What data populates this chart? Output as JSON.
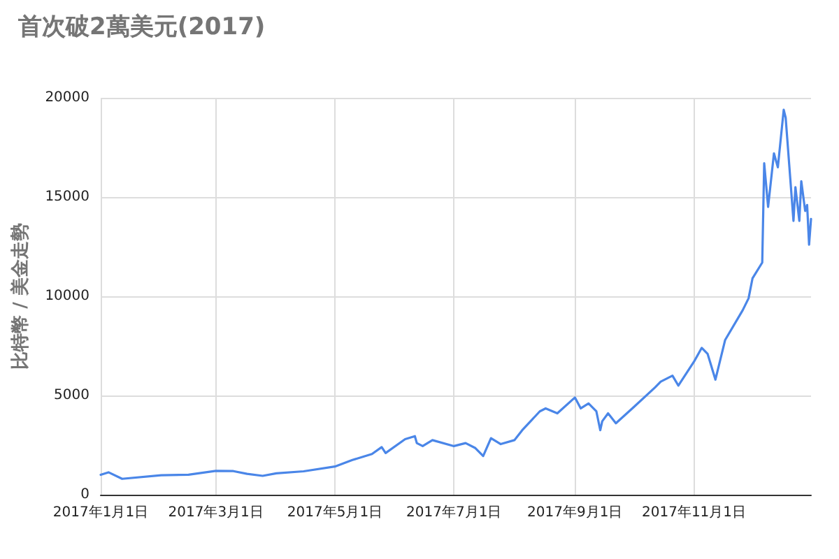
{
  "chart_data": {
    "type": "line",
    "title": "首次破2萬美元(2017)",
    "ylabel": "比特幣 / 美金走勢",
    "x": [
      "2017-01-01",
      "2017-01-05",
      "2017-01-12",
      "2017-02-01",
      "2017-02-15",
      "2017-03-01",
      "2017-03-10",
      "2017-03-17",
      "2017-03-25",
      "2017-04-01",
      "2017-04-15",
      "2017-05-01",
      "2017-05-10",
      "2017-05-20",
      "2017-05-25",
      "2017-05-27",
      "2017-06-06",
      "2017-06-11",
      "2017-06-12",
      "2017-06-15",
      "2017-06-20",
      "2017-07-01",
      "2017-07-07",
      "2017-07-12",
      "2017-07-16",
      "2017-07-20",
      "2017-07-25",
      "2017-08-01",
      "2017-08-05",
      "2017-08-14",
      "2017-08-17",
      "2017-08-23",
      "2017-09-01",
      "2017-09-04",
      "2017-09-08",
      "2017-09-12",
      "2017-09-14",
      "2017-09-15",
      "2017-09-18",
      "2017-09-22",
      "2017-10-01",
      "2017-10-12",
      "2017-10-15",
      "2017-10-21",
      "2017-10-24",
      "2017-11-01",
      "2017-11-05",
      "2017-11-08",
      "2017-11-12",
      "2017-11-17",
      "2017-11-26",
      "2017-11-29",
      "2017-12-01",
      "2017-12-06",
      "2017-12-07",
      "2017-12-09",
      "2017-12-12",
      "2017-12-14",
      "2017-12-17",
      "2017-12-18",
      "2017-12-22",
      "2017-12-23",
      "2017-12-25",
      "2017-12-26",
      "2017-12-28",
      "2017-12-29",
      "2017-12-30",
      "2017-12-31"
    ],
    "series": [
      {
        "color": "#4a86e8",
        "values": [
          1000,
          1130,
          800,
          980,
          1010,
          1200,
          1190,
          1050,
          950,
          1080,
          1180,
          1420,
          1750,
          2050,
          2400,
          2100,
          2800,
          2950,
          2600,
          2450,
          2750,
          2450,
          2600,
          2350,
          1950,
          2850,
          2550,
          2750,
          3250,
          4200,
          4350,
          4100,
          4900,
          4350,
          4600,
          4200,
          3250,
          3700,
          4100,
          3600,
          4400,
          5400,
          5700,
          6000,
          5500,
          6700,
          7400,
          7100,
          5800,
          7800,
          9300,
          9900,
          10900,
          11700,
          16700,
          14500,
          17200,
          16500,
          19400,
          19000,
          13800,
          15500,
          13800,
          15800,
          14300,
          14600,
          12600,
          13900
        ]
      }
    ],
    "xlim": [
      "2017-01-01",
      "2017-12-31"
    ],
    "xticks": [
      {
        "value": "2017-01-01",
        "label": "2017年1月1日"
      },
      {
        "value": "2017-03-01",
        "label": "2017年3月1日"
      },
      {
        "value": "2017-05-01",
        "label": "2017年5月1日"
      },
      {
        "value": "2017-07-01",
        "label": "2017年7月1日"
      },
      {
        "value": "2017-09-01",
        "label": "2017年9月1日"
      },
      {
        "value": "2017-11-01",
        "label": "2017年11月1日"
      }
    ],
    "ylim": [
      0,
      20000
    ],
    "yticks": [
      0,
      5000,
      10000,
      15000,
      20000
    ],
    "grid": true,
    "marker": "none",
    "line_style": "solid"
  }
}
